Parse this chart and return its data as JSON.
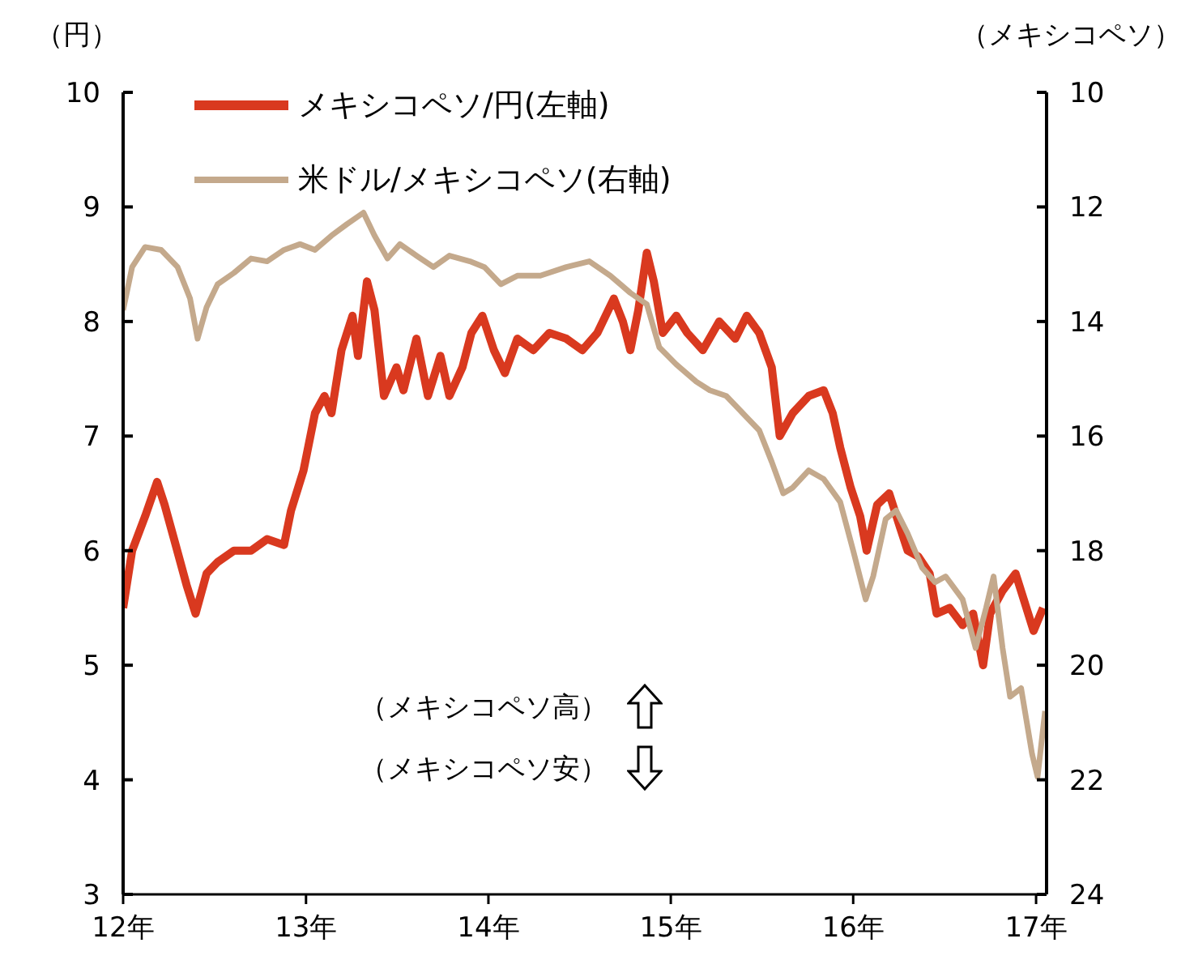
{
  "chart_data": {
    "type": "line",
    "ylabel": "（円）",
    "y2label": "（メキシコペソ）",
    "xlim": [
      "2012-01-01",
      "2017-01-22"
    ],
    "xticks": [
      {
        "value": "2012-01-01",
        "label": "12年"
      },
      {
        "value": "2013-01-01",
        "label": "13年"
      },
      {
        "value": "2014-01-01",
        "label": "14年"
      },
      {
        "value": "2015-01-01",
        "label": "15年"
      },
      {
        "value": "2016-01-01",
        "label": "16年"
      },
      {
        "value": "2017-01-01",
        "label": "17年"
      }
    ],
    "ylim": [
      3,
      10
    ],
    "yticks": [
      3,
      4,
      5,
      6,
      7,
      8,
      9,
      10
    ],
    "y2lim": [
      24,
      10
    ],
    "y2ticks": [
      24,
      22,
      20,
      18,
      16,
      14,
      12,
      10
    ],
    "grid": false,
    "legend": "top left",
    "marker": "none",
    "line_style": "solid",
    "annotations": [
      "（メキシコペソ高）",
      "（メキシコペソ安）"
    ],
    "series": [
      {
        "name": "メキシコペソ/円(左軸)",
        "color": "#d9391f",
        "x": [
          "2012-01-01",
          "2012-01-19",
          "2012-02-14",
          "2012-03-09",
          "2012-03-24",
          "2012-04-12",
          "2012-05-07",
          "2012-05-25",
          "2012-06-16",
          "2012-07-08",
          "2012-08-10",
          "2012-09-13",
          "2012-10-15",
          "2012-11-18",
          "2012-12-02",
          "2012-12-27",
          "2013-01-19",
          "2013-02-07",
          "2013-02-21",
          "2013-03-13",
          "2013-04-04",
          "2013-04-15",
          "2013-05-03",
          "2013-05-18",
          "2013-06-06",
          "2013-07-01",
          "2013-07-15",
          "2013-08-10",
          "2013-09-02",
          "2013-09-27",
          "2013-10-15",
          "2013-11-10",
          "2013-11-28",
          "2013-12-20",
          "2014-01-12",
          "2014-02-03",
          "2014-02-28",
          "2014-04-01",
          "2014-05-03",
          "2014-06-06",
          "2014-07-08",
          "2014-08-07",
          "2014-09-09",
          "2014-09-27",
          "2014-10-12",
          "2014-10-28",
          "2014-11-14",
          "2014-11-28",
          "2014-12-16",
          "2015-01-12",
          "2015-02-03",
          "2015-03-06",
          "2015-04-08",
          "2015-05-10",
          "2015-06-02",
          "2015-06-27",
          "2015-07-22",
          "2015-08-07",
          "2015-09-02",
          "2015-10-04",
          "2015-11-03",
          "2015-11-21",
          "2015-12-06",
          "2015-12-27",
          "2016-01-15",
          "2016-01-28",
          "2016-02-18",
          "2016-03-13",
          "2016-04-04",
          "2016-04-19",
          "2016-05-10",
          "2016-06-02",
          "2016-06-16",
          "2016-07-12",
          "2016-08-07",
          "2016-08-28",
          "2016-09-17",
          "2016-10-01",
          "2016-10-26",
          "2016-11-21",
          "2016-12-09",
          "2016-12-27",
          "2017-01-15"
        ],
        "values": [
          5.5,
          6.0,
          6.3,
          6.6,
          6.4,
          6.1,
          5.7,
          5.45,
          5.8,
          5.9,
          6.0,
          6.0,
          6.1,
          6.05,
          6.35,
          6.7,
          7.2,
          7.35,
          7.2,
          7.75,
          8.05,
          7.7,
          8.35,
          8.1,
          7.35,
          7.6,
          7.4,
          7.85,
          7.35,
          7.7,
          7.35,
          7.6,
          7.9,
          8.05,
          7.75,
          7.55,
          7.85,
          7.75,
          7.9,
          7.85,
          7.75,
          7.9,
          8.2,
          8.0,
          7.75,
          8.1,
          8.6,
          8.35,
          7.9,
          8.05,
          7.9,
          7.75,
          8.0,
          7.85,
          8.05,
          7.9,
          7.6,
          7.0,
          7.2,
          7.35,
          7.4,
          7.2,
          6.9,
          6.55,
          6.3,
          6.0,
          6.4,
          6.5,
          6.2,
          6.0,
          5.95,
          5.8,
          5.45,
          5.5,
          5.35,
          5.45,
          5.0,
          5.45,
          5.65,
          5.8,
          5.55,
          5.3,
          5.5
        ]
      },
      {
        "name": "米ドル/メキシコペソ(右軸)",
        "color": "#c4a98c",
        "axis": "y2",
        "x": [
          "2012-01-01",
          "2012-01-19",
          "2012-02-14",
          "2012-03-17",
          "2012-04-19",
          "2012-05-14",
          "2012-05-29",
          "2012-06-16",
          "2012-07-08",
          "2012-08-10",
          "2012-09-13",
          "2012-10-15",
          "2012-11-18",
          "2012-12-20",
          "2013-01-19",
          "2013-02-21",
          "2013-03-24",
          "2013-04-26",
          "2013-05-18",
          "2013-06-13",
          "2013-07-08",
          "2013-08-10",
          "2013-09-13",
          "2013-10-15",
          "2013-11-25",
          "2013-12-24",
          "2014-01-26",
          "2014-02-28",
          "2014-04-15",
          "2014-06-06",
          "2014-07-22",
          "2014-09-02",
          "2014-10-12",
          "2014-11-14",
          "2014-12-09",
          "2015-01-12",
          "2015-02-21",
          "2015-03-20",
          "2015-04-22",
          "2015-05-25",
          "2015-06-27",
          "2015-07-22",
          "2015-08-14",
          "2015-09-02",
          "2015-10-04",
          "2015-11-03",
          "2015-12-06",
          "2016-01-01",
          "2016-01-26",
          "2016-02-10",
          "2016-03-06",
          "2016-03-27",
          "2016-04-19",
          "2016-05-18",
          "2016-06-13",
          "2016-07-04",
          "2016-08-07",
          "2016-09-02",
          "2016-09-23",
          "2016-10-08",
          "2016-10-26",
          "2016-11-10",
          "2016-12-02",
          "2016-12-24",
          "2017-01-04",
          "2017-01-19"
        ],
        "values": [
          13.8,
          13.05,
          12.7,
          12.75,
          13.05,
          13.6,
          14.3,
          13.75,
          13.35,
          13.15,
          12.9,
          12.95,
          12.75,
          12.65,
          12.75,
          12.5,
          12.3,
          12.1,
          12.5,
          12.9,
          12.65,
          12.85,
          13.05,
          12.85,
          12.95,
          13.05,
          13.35,
          13.2,
          13.2,
          13.05,
          12.95,
          13.2,
          13.5,
          13.7,
          14.45,
          14.75,
          15.05,
          15.2,
          15.3,
          15.6,
          15.9,
          16.45,
          17.0,
          16.9,
          16.6,
          16.75,
          17.15,
          18.0,
          18.85,
          18.45,
          17.45,
          17.3,
          17.7,
          18.3,
          18.55,
          18.45,
          18.85,
          19.7,
          19.0,
          18.45,
          19.7,
          20.55,
          20.4,
          21.55,
          21.95,
          20.8
        ]
      }
    ]
  }
}
